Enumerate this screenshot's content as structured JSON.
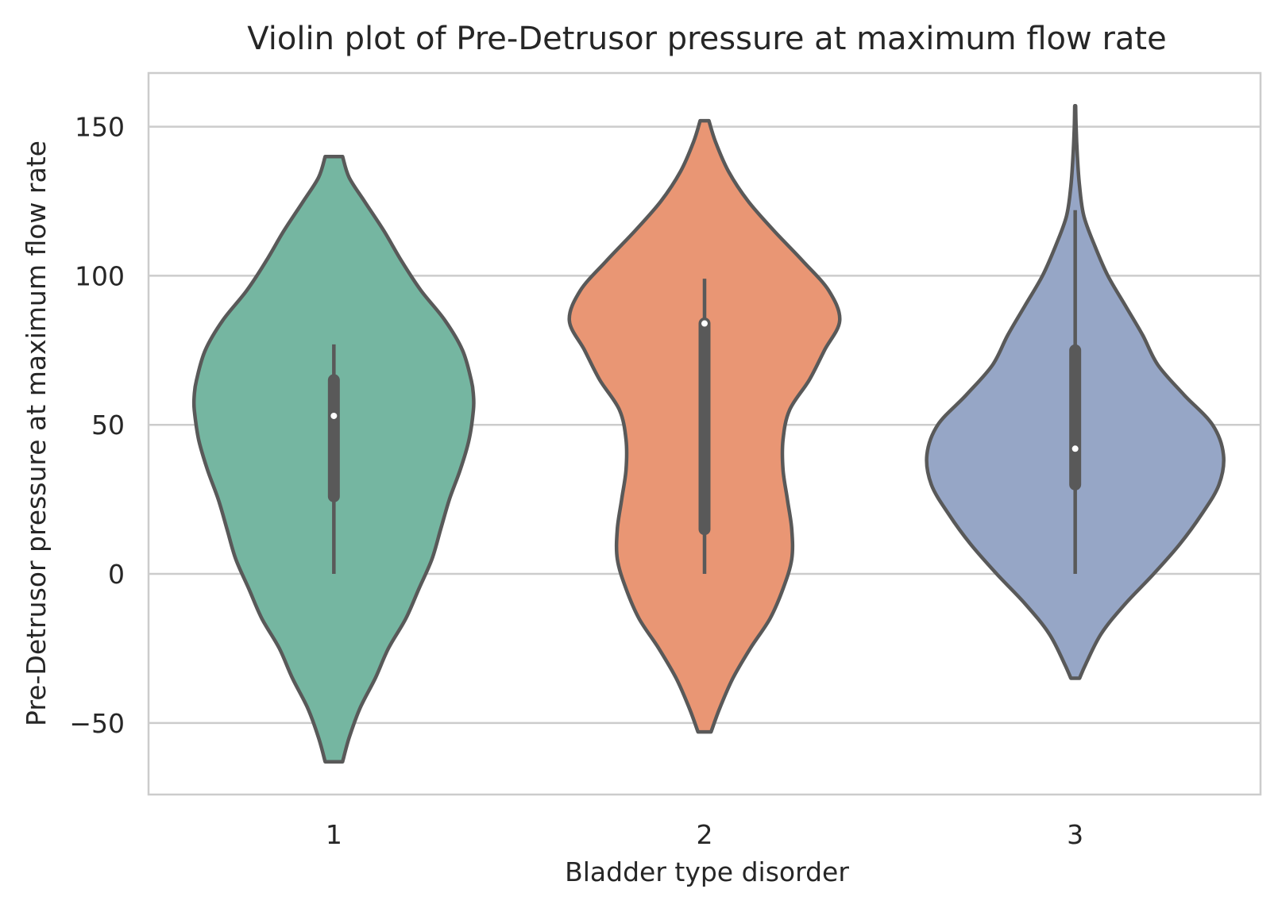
{
  "chart_data": {
    "type": "violin",
    "title": "Violin plot of Pre-Detrusor pressure at maximum flow rate",
    "xlabel": "Bladder type disorder",
    "ylabel": "Pre-Detrusor pressure at maximum flow rate",
    "categories": [
      "1",
      "2",
      "3"
    ],
    "y_ticks": [
      -50,
      0,
      50,
      100,
      150
    ],
    "y_tick_labels": [
      "−50",
      "0",
      "50",
      "100",
      "150"
    ],
    "ylim": [
      -74,
      168
    ],
    "grid": "horizontal",
    "edge_color": "#595959",
    "colors": [
      "#75b6a1",
      "#e99674",
      "#96a6c6"
    ],
    "violins": [
      {
        "category": "1",
        "min": 0,
        "q1": 26,
        "median": 53,
        "q3": 65,
        "max": 77,
        "density": [
          [
            -63,
            0.04
          ],
          [
            -55,
            0.07
          ],
          [
            -45,
            0.12
          ],
          [
            -35,
            0.19
          ],
          [
            -25,
            0.25
          ],
          [
            -15,
            0.33
          ],
          [
            -5,
            0.39
          ],
          [
            5,
            0.45
          ],
          [
            15,
            0.49
          ],
          [
            25,
            0.53
          ],
          [
            35,
            0.58
          ],
          [
            45,
            0.62
          ],
          [
            55,
            0.64
          ],
          [
            60,
            0.64
          ],
          [
            65,
            0.63
          ],
          [
            75,
            0.59
          ],
          [
            85,
            0.51
          ],
          [
            95,
            0.4
          ],
          [
            105,
            0.31
          ],
          [
            115,
            0.23
          ],
          [
            125,
            0.14
          ],
          [
            133,
            0.07
          ],
          [
            140,
            0.04
          ]
        ]
      },
      {
        "category": "2",
        "min": 0,
        "q1": 15,
        "median": 84,
        "q3": 84,
        "max": 99,
        "density": [
          [
            -53,
            0.03
          ],
          [
            -45,
            0.07
          ],
          [
            -35,
            0.13
          ],
          [
            -25,
            0.21
          ],
          [
            -15,
            0.3
          ],
          [
            -5,
            0.36
          ],
          [
            5,
            0.4
          ],
          [
            15,
            0.4
          ],
          [
            25,
            0.38
          ],
          [
            35,
            0.36
          ],
          [
            45,
            0.36
          ],
          [
            55,
            0.39
          ],
          [
            65,
            0.48
          ],
          [
            75,
            0.55
          ],
          [
            85,
            0.62
          ],
          [
            95,
            0.57
          ],
          [
            105,
            0.45
          ],
          [
            115,
            0.32
          ],
          [
            125,
            0.2
          ],
          [
            135,
            0.11
          ],
          [
            145,
            0.05
          ],
          [
            152,
            0.02
          ]
        ]
      },
      {
        "category": "3",
        "min": 0,
        "q1": 30,
        "median": 42,
        "q3": 75,
        "max": 122,
        "density": [
          [
            -35,
            0.02
          ],
          [
            -30,
            0.05
          ],
          [
            -20,
            0.12
          ],
          [
            -10,
            0.23
          ],
          [
            0,
            0.36
          ],
          [
            10,
            0.48
          ],
          [
            20,
            0.58
          ],
          [
            30,
            0.66
          ],
          [
            40,
            0.68
          ],
          [
            50,
            0.63
          ],
          [
            60,
            0.5
          ],
          [
            70,
            0.38
          ],
          [
            80,
            0.31
          ],
          [
            90,
            0.23
          ],
          [
            100,
            0.15
          ],
          [
            110,
            0.09
          ],
          [
            120,
            0.04
          ],
          [
            130,
            0.02
          ],
          [
            140,
            0.01
          ],
          [
            150,
            0.004
          ],
          [
            157,
            0.002
          ]
        ]
      }
    ]
  }
}
